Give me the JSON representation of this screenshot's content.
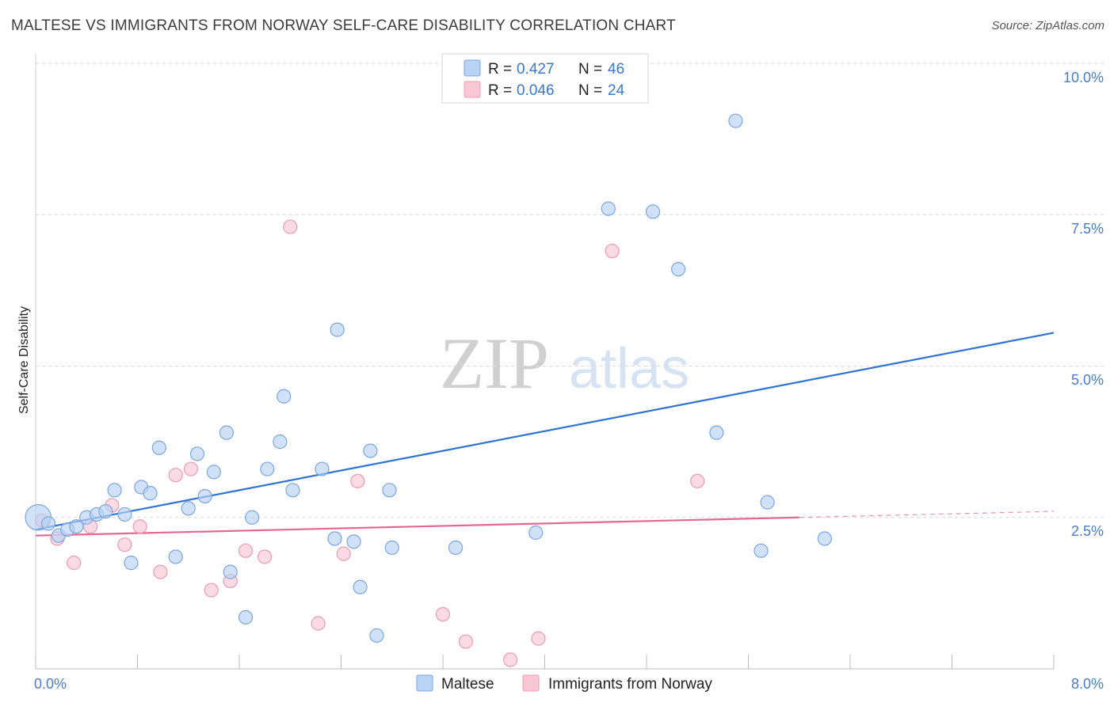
{
  "header": {
    "title": "MALTESE VS IMMIGRANTS FROM NORWAY SELF-CARE DISABILITY CORRELATION CHART",
    "source": "Source: ZipAtlas.com"
  },
  "watermark": {
    "part1": "ZIP",
    "part2": "atlas"
  },
  "colors": {
    "blue_fill": "#b9d3f5",
    "blue_stroke": "#7aa6e0",
    "blue_line": "#2f73d3",
    "pink_fill": "#f8c7d5",
    "pink_stroke": "#ec9bb3",
    "pink_line": "#e3688f",
    "grid": "#d8d8d8",
    "tick_text": "#4a7cc9"
  },
  "legend": {
    "r_label": "R =",
    "n_label": "N =",
    "series": [
      {
        "name": "Maltese",
        "r": "0.427",
        "n": "46"
      },
      {
        "name": "Immigrants from Norway",
        "r": "0.046",
        "n": "24"
      }
    ]
  },
  "chart_data": {
    "type": "scatter",
    "title": "MALTESE VS IMMIGRANTS FROM NORWAY SELF-CARE DISABILITY CORRELATION CHART",
    "xlabel": "",
    "ylabel": "Self-Care Disability",
    "xlim": [
      0,
      8
    ],
    "ylim": [
      0,
      10
    ],
    "x_tick_labels": [
      "0.0%",
      "8.0%"
    ],
    "y_ticks": [
      2.5,
      5.0,
      7.5,
      10.0
    ],
    "y_tick_labels": [
      "2.5%",
      "5.0%",
      "7.5%",
      "10.0%"
    ],
    "grid": true,
    "legend_position": "top-center",
    "series": [
      {
        "name": "Maltese",
        "r": 0.427,
        "n": 46,
        "trend": {
          "x": [
            0.0,
            8.0
          ],
          "y": [
            2.3,
            5.55
          ]
        },
        "points": [
          [
            0.02,
            2.5,
            1.9
          ],
          [
            0.1,
            2.4,
            1
          ],
          [
            0.18,
            2.2,
            1
          ],
          [
            0.25,
            2.3,
            1
          ],
          [
            0.32,
            2.35,
            1
          ],
          [
            0.4,
            2.5,
            1
          ],
          [
            0.48,
            2.55,
            1
          ],
          [
            0.55,
            2.6,
            1
          ],
          [
            0.62,
            2.95,
            1
          ],
          [
            0.7,
            2.55,
            1
          ],
          [
            0.75,
            1.75,
            1
          ],
          [
            0.83,
            3.0,
            1
          ],
          [
            0.9,
            2.9,
            1
          ],
          [
            0.97,
            3.65,
            1
          ],
          [
            1.1,
            1.85,
            1
          ],
          [
            1.2,
            2.65,
            1
          ],
          [
            1.27,
            3.55,
            1
          ],
          [
            1.33,
            2.85,
            1
          ],
          [
            1.4,
            3.25,
            1
          ],
          [
            1.5,
            3.9,
            1
          ],
          [
            1.53,
            1.6,
            1
          ],
          [
            1.65,
            0.85,
            1
          ],
          [
            1.7,
            2.5,
            1
          ],
          [
            1.82,
            3.3,
            1
          ],
          [
            1.92,
            3.75,
            1
          ],
          [
            1.95,
            4.5,
            1
          ],
          [
            2.02,
            2.95,
            1
          ],
          [
            2.25,
            3.3,
            1
          ],
          [
            2.35,
            2.15,
            1
          ],
          [
            2.37,
            5.6,
            1
          ],
          [
            2.5,
            2.1,
            1
          ],
          [
            2.55,
            1.35,
            1
          ],
          [
            2.63,
            3.6,
            1
          ],
          [
            2.68,
            0.55,
            1
          ],
          [
            2.78,
            2.95,
            1
          ],
          [
            2.8,
            2.0,
            1
          ],
          [
            3.3,
            2.0,
            1
          ],
          [
            3.93,
            2.25,
            1
          ],
          [
            4.5,
            7.6,
            1
          ],
          [
            4.85,
            7.55,
            1
          ],
          [
            5.05,
            6.6,
            1
          ],
          [
            5.35,
            3.9,
            1
          ],
          [
            5.5,
            9.05,
            1
          ],
          [
            5.7,
            1.95,
            1
          ],
          [
            5.75,
            2.75,
            1
          ],
          [
            6.2,
            2.15,
            1
          ]
        ]
      },
      {
        "name": "Immigrants from Norway",
        "r": 0.046,
        "n": 24,
        "trend": {
          "x": [
            0.0,
            6.0
          ],
          "y": [
            2.2,
            2.5
          ]
        },
        "trend_dashed": {
          "x": [
            6.0,
            8.0
          ],
          "y": [
            2.5,
            2.6
          ]
        },
        "points": [
          [
            0.05,
            2.45,
            1
          ],
          [
            0.17,
            2.15,
            1
          ],
          [
            0.3,
            1.75,
            1
          ],
          [
            0.43,
            2.35,
            1
          ],
          [
            0.6,
            2.7,
            1
          ],
          [
            0.7,
            2.05,
            1
          ],
          [
            0.82,
            2.35,
            1
          ],
          [
            0.98,
            1.6,
            1
          ],
          [
            1.1,
            3.2,
            1
          ],
          [
            1.22,
            3.3,
            1
          ],
          [
            1.38,
            1.3,
            1
          ],
          [
            1.53,
            1.45,
            1
          ],
          [
            1.65,
            1.95,
            1
          ],
          [
            1.8,
            1.85,
            1
          ],
          [
            2.0,
            7.3,
            1
          ],
          [
            2.22,
            0.75,
            1
          ],
          [
            2.42,
            1.9,
            1
          ],
          [
            2.53,
            3.1,
            1
          ],
          [
            3.2,
            0.9,
            1
          ],
          [
            3.38,
            0.45,
            1
          ],
          [
            3.73,
            0.15,
            1
          ],
          [
            3.95,
            0.5,
            1
          ],
          [
            4.53,
            6.9,
            1
          ],
          [
            5.2,
            3.1,
            1
          ]
        ]
      }
    ]
  }
}
